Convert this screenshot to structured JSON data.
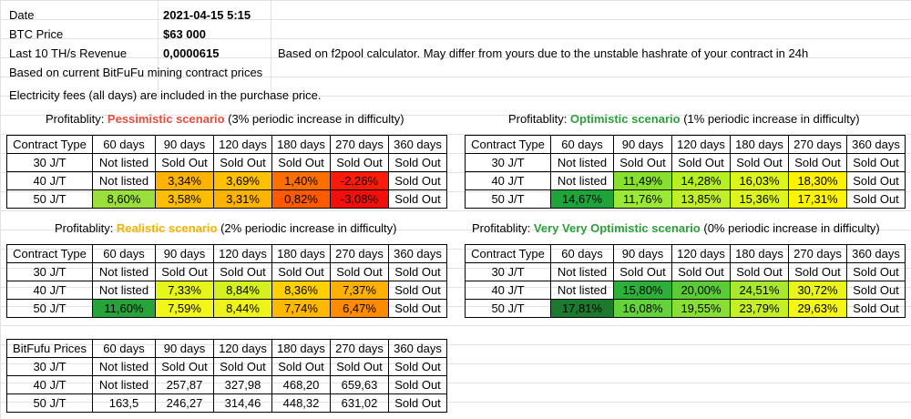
{
  "header": {
    "date_label": "Date",
    "date_value": "2021-04-15 5:15",
    "btc_label": "BTC Price",
    "btc_value": "$63 000",
    "revenue_label": "Last 10 TH/s Revenue",
    "revenue_value": "0,0000615",
    "revenue_note": "Based on f2pool calculator. May differ from yours due to the unstable hashrate of your contract in 24h",
    "note_prices": "Based on current BitFuFu mining contract prices",
    "note_fees": "Electricity fees (all days) are included in the purchase price."
  },
  "columns": [
    "Contract Type",
    "60 days",
    "90 days",
    "120 days",
    "180 days",
    "270 days",
    "360 days"
  ],
  "tables": [
    {
      "id": "pessimistic",
      "title_prefix": "Profitablity: ",
      "scenario": "Pessimistic scenario",
      "scenario_color": "#e74c3c",
      "title_suffix": " (3% periodic increase in difficulty)",
      "rows": [
        {
          "label": "30 J/T",
          "cells": [
            {
              "v": "Not listed"
            },
            {
              "v": "Sold Out"
            },
            {
              "v": "Sold Out"
            },
            {
              "v": "Sold Out"
            },
            {
              "v": "Sold Out"
            },
            {
              "v": "Sold Out"
            }
          ]
        },
        {
          "label": "40 J/T",
          "cells": [
            {
              "v": "Not listed"
            },
            {
              "v": "3,34%",
              "bg": "#ffb300"
            },
            {
              "v": "3,69%",
              "bg": "#ffc000"
            },
            {
              "v": "1,40%",
              "bg": "#ff6f00"
            },
            {
              "v": "-2,26%",
              "bg": "#ff1a0a"
            },
            {
              "v": "Sold Out"
            }
          ]
        },
        {
          "label": "50 J/T",
          "cells": [
            {
              "v": "8,60%",
              "bg": "#9bdf3c"
            },
            {
              "v": "3,58%",
              "bg": "#ffbd00"
            },
            {
              "v": "3,31%",
              "bg": "#ffb300"
            },
            {
              "v": "0,82%",
              "bg": "#ff5a00"
            },
            {
              "v": "-3,08%",
              "bg": "#f20f0a"
            },
            {
              "v": "Sold Out"
            }
          ]
        }
      ]
    },
    {
      "id": "optimistic",
      "title_prefix": "Profitablity: ",
      "scenario": "Optimistic scenario",
      "scenario_color": "#2e9e3c",
      "title_suffix": " (1% periodic increase in difficulty)",
      "rows": [
        {
          "label": "30 J/T",
          "cells": [
            {
              "v": "Not listed"
            },
            {
              "v": "Sold Out"
            },
            {
              "v": "Sold Out"
            },
            {
              "v": "Sold Out"
            },
            {
              "v": "Sold Out"
            },
            {
              "v": "Sold Out"
            }
          ]
        },
        {
          "label": "40 J/T",
          "cells": [
            {
              "v": "Not listed"
            },
            {
              "v": "11,49%",
              "bg": "#88e02e"
            },
            {
              "v": "14,28%",
              "bg": "#b6ef22"
            },
            {
              "v": "16,03%",
              "bg": "#dcf51a"
            },
            {
              "v": "18,30%",
              "bg": "#fff200"
            },
            {
              "v": "Sold Out"
            }
          ]
        },
        {
          "label": "50 J/T",
          "cells": [
            {
              "v": "14,67%",
              "bg": "#1fa43a"
            },
            {
              "v": "11,76%",
              "bg": "#9be836"
            },
            {
              "v": "13,85%",
              "bg": "#c0ef2a"
            },
            {
              "v": "15,36%",
              "bg": "#dcf51f"
            },
            {
              "v": "17,31%",
              "bg": "#fff400"
            },
            {
              "v": "Sold Out"
            }
          ]
        }
      ]
    },
    {
      "id": "realistic",
      "title_prefix": "Profitablity: ",
      "scenario": "Realistic scenario",
      "scenario_color": "#f0b400",
      "title_suffix": " (2% periodic increase in difficulty)",
      "rows": [
        {
          "label": "30 J/T",
          "cells": [
            {
              "v": "Not listed"
            },
            {
              "v": "Sold Out"
            },
            {
              "v": "Sold Out"
            },
            {
              "v": "Sold Out"
            },
            {
              "v": "Sold Out"
            },
            {
              "v": "Sold Out"
            }
          ]
        },
        {
          "label": "40 J/T",
          "cells": [
            {
              "v": "Not listed"
            },
            {
              "v": "7,33%",
              "bg": "#e6f51a"
            },
            {
              "v": "8,84%",
              "bg": "#d6f01f"
            },
            {
              "v": "8,36%",
              "bg": "#ffd000"
            },
            {
              "v": "7,37%",
              "bg": "#ffb000"
            },
            {
              "v": "Sold Out"
            }
          ]
        },
        {
          "label": "50 J/T",
          "cells": [
            {
              "v": "11,60%",
              "bg": "#27a33a"
            },
            {
              "v": "7,59%",
              "bg": "#f3f717"
            },
            {
              "v": "8,44%",
              "bg": "#eef41a"
            },
            {
              "v": "7,74%",
              "bg": "#ffb800"
            },
            {
              "v": "6,47%",
              "bg": "#ff8c00"
            },
            {
              "v": "Sold Out"
            }
          ]
        }
      ]
    },
    {
      "id": "very-optimistic",
      "title_prefix": "Profitablity: ",
      "scenario": "Very Very Optimistic scenario",
      "scenario_color": "#2e9e3c",
      "title_suffix": " (0% periodic increase in difficulty)",
      "rows": [
        {
          "label": "30 J/T",
          "cells": [
            {
              "v": "Not listed"
            },
            {
              "v": "Sold Out"
            },
            {
              "v": "Sold Out"
            },
            {
              "v": "Sold Out"
            },
            {
              "v": "Sold Out"
            },
            {
              "v": "Sold Out"
            }
          ]
        },
        {
          "label": "40 J/T",
          "cells": [
            {
              "v": "Not listed"
            },
            {
              "v": "15,80%",
              "bg": "#2cb03a"
            },
            {
              "v": "20,00%",
              "bg": "#5ccc36"
            },
            {
              "v": "24,51%",
              "bg": "#a8e82e"
            },
            {
              "v": "30,72%",
              "bg": "#e8f41a"
            },
            {
              "v": "Sold Out"
            }
          ]
        },
        {
          "label": "50 J/T",
          "cells": [
            {
              "v": "17,81%",
              "bg": "#1c7a2e"
            },
            {
              "v": "16,08%",
              "bg": "#64d23a"
            },
            {
              "v": "19,55%",
              "bg": "#88de32"
            },
            {
              "v": "23,79%",
              "bg": "#c6ee26"
            },
            {
              "v": "29,63%",
              "bg": "#f3f617"
            },
            {
              "v": "Sold Out"
            }
          ]
        }
      ]
    },
    {
      "id": "prices",
      "header_label": "BitFufu Prices",
      "rows": [
        {
          "label": "30 J/T",
          "cells": [
            {
              "v": "Not listed"
            },
            {
              "v": "Sold Out"
            },
            {
              "v": "Sold Out"
            },
            {
              "v": "Sold Out"
            },
            {
              "v": "Sold Out"
            },
            {
              "v": "Sold Out"
            }
          ]
        },
        {
          "label": "40 J/T",
          "cells": [
            {
              "v": "Not listed"
            },
            {
              "v": "257,87"
            },
            {
              "v": "327,98"
            },
            {
              "v": "468,20"
            },
            {
              "v": "659,63"
            },
            {
              "v": "Sold Out"
            }
          ]
        },
        {
          "label": "50 J/T",
          "cells": [
            {
              "v": "163,5"
            },
            {
              "v": "246,27"
            },
            {
              "v": "314,46"
            },
            {
              "v": "448,32"
            },
            {
              "v": "631,02"
            },
            {
              "v": "Sold Out"
            }
          ]
        }
      ]
    }
  ]
}
